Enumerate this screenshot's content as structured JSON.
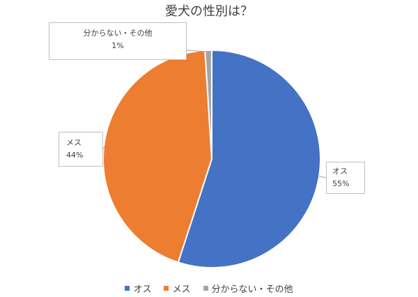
{
  "chart_data": {
    "type": "pie",
    "title": "愛犬の性別は？",
    "categories": [
      "オス",
      "メス",
      "分からない・その他"
    ],
    "values": [
      55,
      44,
      1
    ],
    "data_labels": [
      "55%",
      "44%",
      "1%"
    ],
    "colors": [
      "#4472c4",
      "#ed7d31",
      "#a5a5a5"
    ],
    "legend_position": "bottom"
  }
}
